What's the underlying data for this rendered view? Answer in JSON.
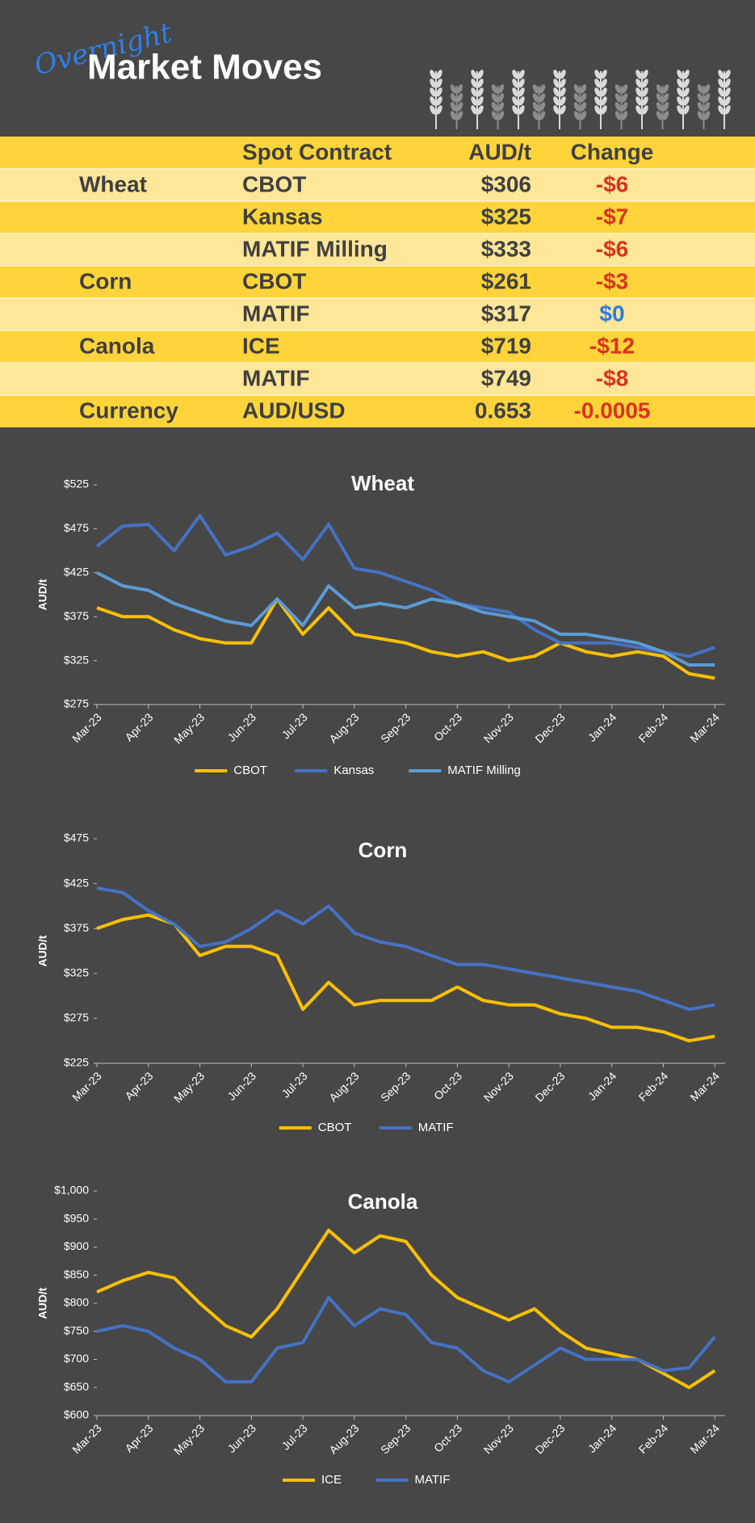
{
  "header": {
    "kicker": "Overnight",
    "title": "Market Moves"
  },
  "table": {
    "columns": [
      "Spot Contract",
      "AUD/t",
      "Change"
    ],
    "rows": [
      {
        "group": "Wheat",
        "contract": "CBOT",
        "price": "$306",
        "change": "-$6"
      },
      {
        "contract": "Kansas",
        "price": "$325",
        "change": "-$7"
      },
      {
        "contract": "MATIF Milling",
        "price": "$333",
        "change": "-$6"
      },
      {
        "group": "Corn",
        "contract": "CBOT",
        "price": "$261",
        "change": "-$3"
      },
      {
        "contract": "MATIF",
        "price": "$317",
        "change": "$0"
      },
      {
        "group": "Canola",
        "contract": "ICE",
        "price": "$719",
        "change": "-$12"
      },
      {
        "contract": "MATIF",
        "price": "$749",
        "change": "-$8"
      },
      {
        "group": "Currency",
        "contract": "AUD/USD",
        "price": "0.653",
        "change": "-0.0005"
      }
    ]
  },
  "chart_data": [
    {
      "type": "line",
      "title": "Wheat",
      "y_label": "AUD/t",
      "x": [
        0,
        0.5,
        1,
        1.5,
        2,
        2.5,
        3,
        3.5,
        4,
        4.5,
        5,
        5.5,
        6,
        6.5,
        7,
        7.5,
        8,
        8.5,
        9,
        9.5,
        10,
        10.5,
        11,
        11.5,
        12
      ],
      "xlim": [
        0,
        12.2
      ],
      "xticks": [
        {
          "value": 0,
          "label": "Mar-23"
        },
        {
          "value": 1,
          "label": "Apr-23"
        },
        {
          "value": 2,
          "label": "May-23"
        },
        {
          "value": 3,
          "label": "Jun-23"
        },
        {
          "value": 4,
          "label": "Jul-23"
        },
        {
          "value": 5,
          "label": "Aug-23"
        },
        {
          "value": 6,
          "label": "Sep-23"
        },
        {
          "value": 7,
          "label": "Oct-23"
        },
        {
          "value": 8,
          "label": "Nov-23"
        },
        {
          "value": 9,
          "label": "Dec-23"
        },
        {
          "value": 10,
          "label": "Jan-24"
        },
        {
          "value": 11,
          "label": "Feb-24"
        },
        {
          "value": 12,
          "label": "Mar-24"
        }
      ],
      "ylim": [
        275,
        525
      ],
      "yticks": [
        {
          "value": 275,
          "label": "$275"
        },
        {
          "value": 325,
          "label": "$325"
        },
        {
          "value": 375,
          "label": "$375"
        },
        {
          "value": 425,
          "label": "$425"
        },
        {
          "value": 475,
          "label": "$475"
        },
        {
          "value": 525,
          "label": "$525"
        }
      ],
      "series": [
        {
          "name": "CBOT",
          "color": "#ffc000",
          "values": [
            385,
            375,
            375,
            360,
            350,
            345,
            345,
            395,
            355,
            385,
            355,
            350,
            345,
            335,
            330,
            335,
            325,
            330,
            345,
            335,
            330,
            335,
            330,
            310,
            305
          ]
        },
        {
          "name": "Kansas",
          "color": "#4472c4",
          "values": [
            455,
            478,
            480,
            450,
            490,
            445,
            455,
            470,
            440,
            480,
            430,
            425,
            415,
            405,
            390,
            385,
            380,
            360,
            345,
            345,
            345,
            340,
            335,
            330,
            340
          ]
        },
        {
          "name": "MATIF Milling",
          "color": "#5b9bd5",
          "values": [
            425,
            410,
            405,
            390,
            380,
            370,
            365,
            395,
            365,
            410,
            385,
            390,
            385,
            395,
            390,
            380,
            375,
            370,
            355,
            355,
            350,
            345,
            335,
            320,
            320
          ]
        }
      ]
    },
    {
      "type": "line",
      "title": "Corn",
      "y_label": "AUD/t",
      "x": [
        0,
        0.5,
        1,
        1.5,
        2,
        2.5,
        3,
        3.5,
        4,
        4.5,
        5,
        5.5,
        6,
        6.5,
        7,
        7.5,
        8,
        8.5,
        9,
        9.5,
        10,
        10.5,
        11,
        11.5,
        12
      ],
      "xlim": [
        0,
        12.2
      ],
      "xticks": [
        {
          "value": 0,
          "label": "Mar-23"
        },
        {
          "value": 1,
          "label": "Apr-23"
        },
        {
          "value": 2,
          "label": "May-23"
        },
        {
          "value": 3,
          "label": "Jun-23"
        },
        {
          "value": 4,
          "label": "Jul-23"
        },
        {
          "value": 5,
          "label": "Aug-23"
        },
        {
          "value": 6,
          "label": "Sep-23"
        },
        {
          "value": 7,
          "label": "Oct-23"
        },
        {
          "value": 8,
          "label": "Nov-23"
        },
        {
          "value": 9,
          "label": "Dec-23"
        },
        {
          "value": 10,
          "label": "Jan-24"
        },
        {
          "value": 11,
          "label": "Feb-24"
        },
        {
          "value": 12,
          "label": "Mar-24"
        }
      ],
      "ylim": [
        225,
        475
      ],
      "yticks": [
        {
          "value": 225,
          "label": "$225"
        },
        {
          "value": 275,
          "label": "$275"
        },
        {
          "value": 325,
          "label": "$325"
        },
        {
          "value": 375,
          "label": "$375"
        },
        {
          "value": 425,
          "label": "$425"
        },
        {
          "value": 475,
          "label": "$475"
        }
      ],
      "series": [
        {
          "name": "CBOT",
          "color": "#ffc000",
          "values": [
            375,
            385,
            390,
            380,
            345,
            355,
            355,
            345,
            285,
            315,
            290,
            295,
            295,
            295,
            310,
            295,
            290,
            290,
            280,
            275,
            265,
            265,
            260,
            250,
            255
          ]
        },
        {
          "name": "MATIF",
          "color": "#4472c4",
          "values": [
            420,
            415,
            395,
            380,
            355,
            360,
            375,
            395,
            380,
            400,
            370,
            360,
            355,
            345,
            335,
            335,
            330,
            325,
            320,
            315,
            310,
            305,
            295,
            285,
            290
          ]
        }
      ]
    },
    {
      "type": "line",
      "title": "Canola",
      "y_label": "AUD/t",
      "x": [
        0,
        0.5,
        1,
        1.5,
        2,
        2.5,
        3,
        3.5,
        4,
        4.5,
        5,
        5.5,
        6,
        6.5,
        7,
        7.5,
        8,
        8.5,
        9,
        9.5,
        10,
        10.5,
        11,
        11.5,
        12
      ],
      "xlim": [
        0,
        12.2
      ],
      "xticks": [
        {
          "value": 0,
          "label": "Mar-23"
        },
        {
          "value": 1,
          "label": "Apr-23"
        },
        {
          "value": 2,
          "label": "May-23"
        },
        {
          "value": 3,
          "label": "Jun-23"
        },
        {
          "value": 4,
          "label": "Jul-23"
        },
        {
          "value": 5,
          "label": "Aug-23"
        },
        {
          "value": 6,
          "label": "Sep-23"
        },
        {
          "value": 7,
          "label": "Oct-23"
        },
        {
          "value": 8,
          "label": "Nov-23"
        },
        {
          "value": 9,
          "label": "Dec-23"
        },
        {
          "value": 10,
          "label": "Jan-24"
        },
        {
          "value": 11,
          "label": "Feb-24"
        },
        {
          "value": 12,
          "label": "Mar-24"
        }
      ],
      "ylim": [
        600,
        1000
      ],
      "yticks": [
        {
          "value": 600,
          "label": "$600"
        },
        {
          "value": 650,
          "label": "$650"
        },
        {
          "value": 700,
          "label": "$700"
        },
        {
          "value": 750,
          "label": "$750"
        },
        {
          "value": 800,
          "label": "$800"
        },
        {
          "value": 850,
          "label": "$850"
        },
        {
          "value": 900,
          "label": "$900"
        },
        {
          "value": 950,
          "label": "$950"
        },
        {
          "value": 1000,
          "label": "$1,000"
        }
      ],
      "series": [
        {
          "name": "ICE",
          "color": "#ffc000",
          "values": [
            820,
            840,
            855,
            845,
            800,
            760,
            740,
            790,
            860,
            930,
            890,
            920,
            910,
            850,
            810,
            790,
            770,
            790,
            750,
            720,
            710,
            700,
            675,
            650,
            680
          ]
        },
        {
          "name": "MATIF",
          "color": "#4472c4",
          "values": [
            750,
            760,
            750,
            720,
            700,
            660,
            660,
            720,
            730,
            810,
            760,
            790,
            780,
            730,
            720,
            680,
            660,
            690,
            720,
            700,
            700,
            700,
            680,
            685,
            740
          ]
        }
      ]
    }
  ]
}
